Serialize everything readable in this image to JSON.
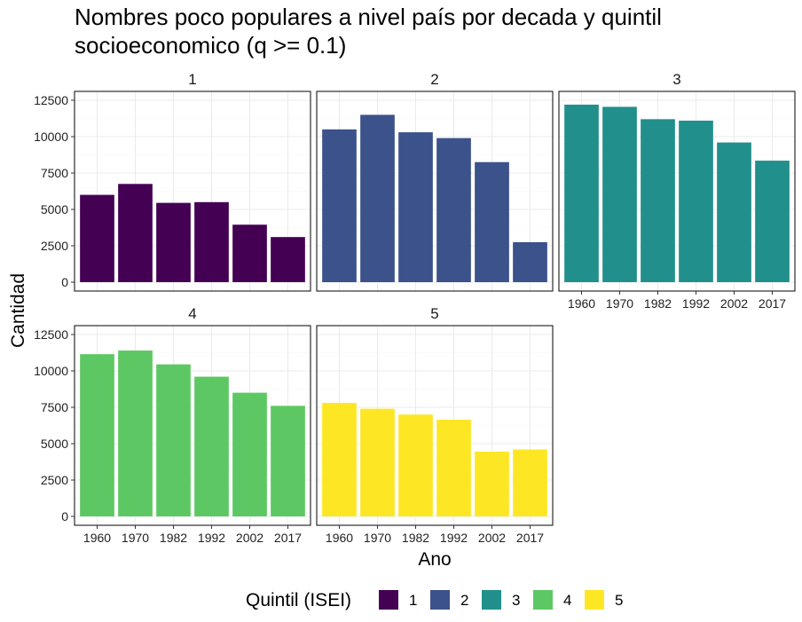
{
  "chart_data": {
    "type": "bar",
    "title": "Nombres poco populares a nivel país por decada y quintil socioeconomico (q >= 0.1)",
    "title_lines": [
      "Nombres poco populares a nivel país por decada y quintil",
      "socioeconomico (q >= 0.1)"
    ],
    "xlabel": "Ano",
    "ylabel": "Cantidad",
    "categories": [
      "1960",
      "1970",
      "1982",
      "1992",
      "2002",
      "2017"
    ],
    "ylim": [
      0,
      12500
    ],
    "yticks": [
      0,
      2500,
      5000,
      7500,
      10000,
      12500
    ],
    "grid": true,
    "legend": {
      "title": "Quintil (ISEI)",
      "position": "bottom"
    },
    "facets": [
      {
        "name": "1",
        "color": "#440154",
        "values": [
          6000,
          6750,
          5450,
          5500,
          3950,
          3100
        ]
      },
      {
        "name": "2",
        "color": "#3B528B",
        "values": [
          10500,
          11500,
          10300,
          9900,
          8250,
          2750
        ]
      },
      {
        "name": "3",
        "color": "#21908C",
        "values": [
          12200,
          12050,
          11200,
          11100,
          9600,
          8350
        ]
      },
      {
        "name": "4",
        "color": "#5DC863",
        "values": [
          11150,
          11400,
          10450,
          9600,
          8500,
          7600
        ]
      },
      {
        "name": "5",
        "color": "#FDE725",
        "values": [
          7800,
          7400,
          7000,
          6650,
          4450,
          4600
        ]
      }
    ]
  }
}
